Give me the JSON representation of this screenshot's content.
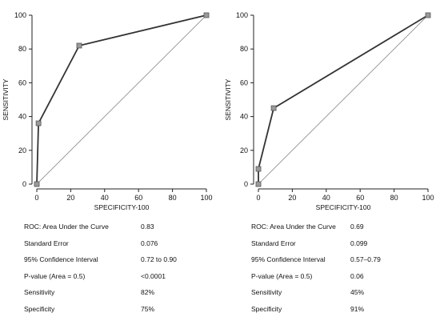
{
  "chart_data": [
    {
      "type": "line",
      "title": "",
      "xlabel": "SPECIFICITY-100",
      "ylabel": "SENSITIVITY",
      "xlim": [
        0,
        100
      ],
      "ylim": [
        0,
        100
      ],
      "xticks": [
        "0",
        "20",
        "40",
        "60",
        "80",
        "100"
      ],
      "yticks": [
        "0",
        "20",
        "40",
        "60",
        "80",
        "100"
      ],
      "grid": false,
      "series": [
        {
          "values": [
            [
              0,
              0
            ],
            [
              1,
              36
            ],
            [
              25,
              82
            ],
            [
              100,
              100
            ]
          ]
        }
      ],
      "reference_line": [
        [
          0,
          0
        ],
        [
          100,
          100
        ]
      ],
      "stats": [
        {
          "label": "ROC: Area Under the Curve",
          "value": "0.83"
        },
        {
          "label": "Standard Error",
          "value": "0.076"
        },
        {
          "label": "95% Confidence Interval",
          "value": "0.72 to 0.90"
        },
        {
          "label": "P-value (Area = 0.5)",
          "value": "<0.0001"
        },
        {
          "label": "Sensitivity",
          "value": "82%"
        },
        {
          "label": "Specificity",
          "value": "75%"
        }
      ]
    },
    {
      "type": "line",
      "title": "",
      "xlabel": "SPECIFICITY-100",
      "ylabel": "SENSITIVITY",
      "xlim": [
        0,
        100
      ],
      "ylim": [
        0,
        100
      ],
      "xticks": [
        "0",
        "20",
        "40",
        "60",
        "80",
        "100"
      ],
      "yticks": [
        "0",
        "20",
        "40",
        "60",
        "80",
        "100"
      ],
      "grid": false,
      "series": [
        {
          "values": [
            [
              0,
              0
            ],
            [
              0,
              9
            ],
            [
              9,
              45
            ],
            [
              100,
              100
            ]
          ]
        }
      ],
      "reference_line": [
        [
          0,
          0
        ],
        [
          100,
          100
        ]
      ],
      "stats": [
        {
          "label": "ROC: Area Under the Curve",
          "value": "0.69"
        },
        {
          "label": "Standard Error",
          "value": "0.099"
        },
        {
          "label": "95% Confidence Interval",
          "value": "0.57–0.79"
        },
        {
          "label": "P-value (Area = 0.5)",
          "value": "0.06"
        },
        {
          "label": "Sensitivity",
          "value": "45%"
        },
        {
          "label": "Specificity",
          "value": "91%"
        }
      ]
    }
  ]
}
